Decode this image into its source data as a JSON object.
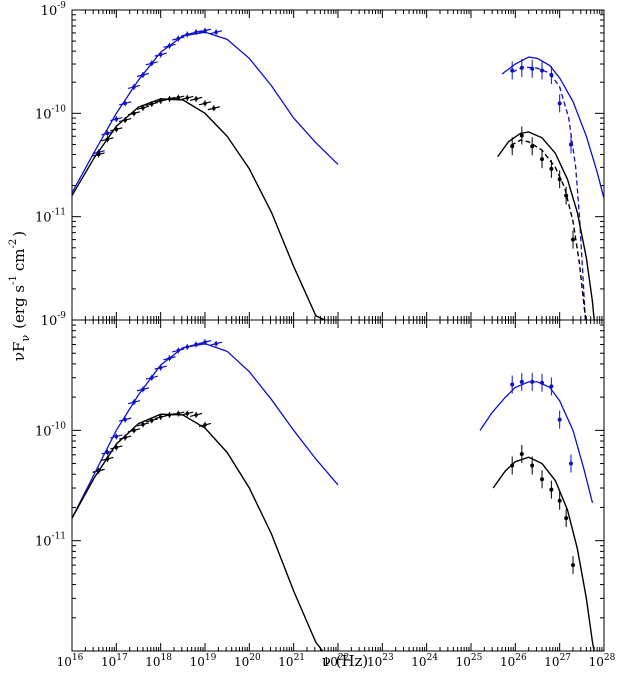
{
  "chart_data": [
    {
      "type": "scatter",
      "panel": "top",
      "xlabel": "",
      "ylabel": "",
      "xscale": "log",
      "yscale": "log",
      "xlim": [
        1e+16,
        1e+28
      ],
      "ylim": [
        1e-12,
        1e-09
      ],
      "x_tick_labels": [],
      "y_ticks": [
        {
          "base": "10",
          "exp": "-9"
        },
        {
          "base": "10",
          "exp": "-10"
        },
        {
          "base": "10",
          "exp": "-11"
        }
      ],
      "series": [
        {
          "color": "#1010cc",
          "kind": "points",
          "points": [
            [
              3.98e+16,
              4.2e-11
            ],
            [
              6.3e+16,
              6.4e-11
            ],
            [
              1e+17,
              8.8e-11
            ],
            [
              1.58e+17,
              1.25e-10
            ],
            [
              2.5e+17,
              1.8e-10
            ],
            [
              3.98e+17,
              2.35e-10
            ],
            [
              6.3e+17,
              3.05e-10
            ],
            [
              1e+18,
              3.7e-10
            ],
            [
              1.58e+18,
              4.5e-10
            ],
            [
              2.5e+18,
              5.3e-10
            ],
            [
              3.98e+18,
              5.8e-10
            ],
            [
              6.3e+18,
              6.1e-10
            ],
            [
              1e+19,
              6.3e-10
            ],
            [
              1.78e+19,
              6.1e-10
            ]
          ]
        },
        {
          "color": "#000000",
          "kind": "points",
          "points": [
            [
              3.98e+16,
              4e-11
            ],
            [
              6.3e+16,
              5.6e-11
            ],
            [
              1e+17,
              7e-11
            ],
            [
              1.58e+17,
              8.6e-11
            ],
            [
              2.5e+17,
              1e-10
            ],
            [
              3.98e+17,
              1.13e-10
            ],
            [
              6.3e+17,
              1.23e-10
            ],
            [
              1e+18,
              1.32e-10
            ],
            [
              1.58e+18,
              1.38e-10
            ],
            [
              2.5e+18,
              1.42e-10
            ],
            [
              3.98e+18,
              1.41e-10
            ],
            [
              6.3e+18,
              1.38e-10
            ],
            [
              1e+19,
              1.25e-10
            ],
            [
              1.58e+19,
              1.12e-10
            ]
          ]
        },
        {
          "color": "#1010cc",
          "kind": "points",
          "points": [
            [
              8.5e+25,
              2.6e-10
            ],
            [
              1.4e+26,
              2.75e-10
            ],
            [
              2.4e+26,
              2.7e-10
            ],
            [
              4e+26,
              2.6e-10
            ],
            [
              6.5e+26,
              2.35e-10
            ],
            [
              1e+27,
              1.25e-10
            ],
            [
              1.8e+27,
              5e-11
            ]
          ]
        },
        {
          "color": "#000000",
          "kind": "points",
          "points": [
            [
              8.5e+25,
              4.8e-11
            ],
            [
              1.4e+26,
              6.1e-11
            ],
            [
              2.4e+26,
              4.8e-11
            ],
            [
              4e+26,
              3.6e-11
            ],
            [
              6.5e+26,
              2.9e-11
            ],
            [
              1e+27,
              2.3e-11
            ],
            [
              1.4e+27,
              1.6e-11
            ],
            [
              2e+27,
              6e-12
            ]
          ]
        },
        {
          "color": "#1010cc",
          "kind": "curve",
          "dash": "solid",
          "points": [
            [
              1e+16,
              1.7e-11
            ],
            [
              3.16e+16,
              4.2e-11
            ],
            [
              1e+17,
              1e-10
            ],
            [
              3.16e+17,
              2.1e-10
            ],
            [
              1e+18,
              3.9e-10
            ],
            [
              3.16e+18,
              5.6e-10
            ],
            [
              1e+19,
              6.1e-10
            ],
            [
              3.16e+19,
              5.2e-10
            ],
            [
              1e+20,
              3.4e-10
            ],
            [
              3.16e+20,
              1.85e-10
            ],
            [
              1e+21,
              9e-11
            ],
            [
              3.16e+21,
              5.2e-11
            ],
            [
              1e+22,
              3.2e-11
            ]
          ]
        },
        {
          "color": "#000000",
          "kind": "curve",
          "dash": "solid",
          "points": [
            [
              1e+16,
              1.6e-11
            ],
            [
              3.16e+16,
              3.7e-11
            ],
            [
              1e+17,
              7.5e-11
            ],
            [
              3.16e+17,
              1.15e-10
            ],
            [
              1e+18,
              1.38e-10
            ],
            [
              3.16e+18,
              1.35e-10
            ],
            [
              1e+19,
              1e-10
            ],
            [
              3.16e+19,
              6e-11
            ],
            [
              1e+20,
              2.9e-11
            ],
            [
              3.16e+20,
              1.1e-11
            ],
            [
              1e+21,
              3.3e-12
            ],
            [
              3.16e+21,
              1.1e-12
            ],
            [
              5e+21,
              1e-12
            ]
          ]
        },
        {
          "color": "#1010cc",
          "kind": "curve",
          "dash": "solid",
          "points": [
            [
              5e+25,
              2.4e-10
            ],
            [
              1e+26,
              3e-10
            ],
            [
              2e+26,
              3.5e-10
            ],
            [
              3.16e+26,
              3.4e-10
            ],
            [
              6e+26,
              2.9e-10
            ],
            [
              1e+27,
              2.2e-10
            ],
            [
              2e+27,
              1.3e-10
            ],
            [
              4e+27,
              6e-11
            ],
            [
              7e+27,
              2.7e-11
            ],
            [
              1e+28,
              1.5e-11
            ]
          ]
        },
        {
          "color": "#1010cc",
          "kind": "curve",
          "dash": "dashed",
          "points": [
            [
              8.5e+25,
              2.5e-10
            ],
            [
              1.5e+26,
              2.8e-10
            ],
            [
              3e+26,
              2.75e-10
            ],
            [
              6e+26,
              2.45e-10
            ],
            [
              1e+27,
              1.8e-10
            ],
            [
              1.6e+27,
              9e-11
            ],
            [
              2.3e+27,
              3e-11
            ],
            [
              2.8e+27,
              1e-11
            ],
            [
              3.3e+27,
              3e-12
            ],
            [
              3.8e+27,
              1e-12
            ]
          ]
        },
        {
          "color": "#000000",
          "kind": "curve",
          "dash": "solid",
          "points": [
            [
              3.98e+25,
              3.8e-11
            ],
            [
              7e+25,
              5.3e-11
            ],
            [
              1.3e+26,
              6.4e-11
            ],
            [
              2e+26,
              6.6e-11
            ],
            [
              4e+26,
              5.8e-11
            ],
            [
              8e+26,
              4.1e-11
            ],
            [
              1.5e+27,
              2.3e-11
            ],
            [
              2.5e+27,
              1.1e-11
            ],
            [
              4e+27,
              4e-12
            ],
            [
              5.5e+27,
              1.5e-12
            ],
            [
              6e+27,
              1e-12
            ]
          ]
        },
        {
          "color": "#000000",
          "kind": "curve",
          "dash": "dashed",
          "points": [
            [
              8e+25,
              4.9e-11
            ],
            [
              1.3e+26,
              5.5e-11
            ],
            [
              2e+26,
              5.3e-11
            ],
            [
              4e+26,
              4.4e-11
            ],
            [
              8e+26,
              3e-11
            ],
            [
              1.3e+27,
              1.9e-11
            ],
            [
              2e+27,
              9e-12
            ],
            [
              2.8e+27,
              3.5e-12
            ],
            [
              3.6e+27,
              1.3e-12
            ],
            [
              3.9e+27,
              1e-12
            ]
          ]
        }
      ]
    },
    {
      "type": "scatter",
      "panel": "bottom",
      "xlabel": "ν (Hz)",
      "ylabel": "νF",
      "ylabel_sub": "ν",
      "ylabel_units": "(erg s",
      "ylabel_exp1": "-1",
      "ylabel_units2": "cm",
      "ylabel_exp2": "-2",
      "ylabel_close": ")",
      "xscale": "log",
      "yscale": "log",
      "xlim": [
        1e+16,
        1e+28
      ],
      "ylim": [
        1e-12,
        1e-09
      ],
      "x_tick_labels": [
        {
          "base": "10",
          "exp": "16"
        },
        {
          "base": "10",
          "exp": "17"
        },
        {
          "base": "10",
          "exp": "18"
        },
        {
          "base": "10",
          "exp": "19"
        },
        {
          "base": "10",
          "exp": "20"
        },
        {
          "base": "10",
          "exp": "21"
        },
        {
          "base": "10",
          "exp": "22"
        },
        {
          "base": "10",
          "exp": "23"
        },
        {
          "base": "10",
          "exp": "24"
        },
        {
          "base": "10",
          "exp": "25"
        },
        {
          "base": "10",
          "exp": "26"
        },
        {
          "base": "10",
          "exp": "27"
        },
        {
          "base": "10",
          "exp": "28"
        }
      ],
      "y_ticks": [
        {
          "base": "10",
          "exp": "-9"
        },
        {
          "base": "10",
          "exp": "-10"
        },
        {
          "base": "10",
          "exp": "-11"
        }
      ],
      "series": [
        {
          "color": "#1010cc",
          "kind": "points",
          "points": [
            [
              3.98e+16,
              4.3e-11
            ],
            [
              6.3e+16,
              6.3e-11
            ],
            [
              1e+17,
              8.8e-11
            ],
            [
              1.58e+17,
              1.25e-10
            ],
            [
              2.5e+17,
              1.8e-10
            ],
            [
              3.98e+17,
              2.35e-10
            ],
            [
              6.3e+17,
              3e-10
            ],
            [
              1e+18,
              3.7e-10
            ],
            [
              1.58e+18,
              4.5e-10
            ],
            [
              2.5e+18,
              5.3e-10
            ],
            [
              3.98e+18,
              5.7e-10
            ],
            [
              6.3e+18,
              6e-10
            ],
            [
              1e+19,
              6.3e-10
            ],
            [
              1.78e+19,
              6.1e-10
            ]
          ]
        },
        {
          "color": "#000000",
          "kind": "points",
          "points": [
            [
              3.98e+16,
              4.3e-11
            ],
            [
              6.3e+16,
              5.5e-11
            ],
            [
              1e+17,
              7e-11
            ],
            [
              1.58e+17,
              8.6e-11
            ],
            [
              2.5e+17,
              1e-10
            ],
            [
              3.98e+17,
              1.13e-10
            ],
            [
              6.3e+17,
              1.23e-10
            ],
            [
              1e+18,
              1.32e-10
            ],
            [
              1.58e+18,
              1.38e-10
            ],
            [
              2.5e+18,
              1.42e-10
            ],
            [
              3.98e+18,
              1.42e-10
            ],
            [
              6.3e+18,
              1.38e-10
            ],
            [
              1e+19,
              1.12e-10
            ]
          ]
        },
        {
          "color": "#1010cc",
          "kind": "points",
          "points": [
            [
              8.5e+25,
              2.6e-10
            ],
            [
              1.4e+26,
              2.75e-10
            ],
            [
              2.4e+26,
              2.75e-10
            ],
            [
              4e+26,
              2.7e-10
            ],
            [
              6.5e+26,
              2.5e-10
            ],
            [
              1e+27,
              1.25e-10
            ],
            [
              1.8e+27,
              5e-11
            ]
          ]
        },
        {
          "color": "#000000",
          "kind": "points",
          "points": [
            [
              8.5e+25,
              4.8e-11
            ],
            [
              1.4e+26,
              6.1e-11
            ],
            [
              2.4e+26,
              4.8e-11
            ],
            [
              4e+26,
              3.6e-11
            ],
            [
              6.5e+26,
              2.9e-11
            ],
            [
              1e+27,
              2.3e-11
            ],
            [
              1.4e+27,
              1.6e-11
            ],
            [
              2e+27,
              6e-12
            ]
          ]
        },
        {
          "color": "#1010cc",
          "kind": "curve",
          "dash": "solid",
          "points": [
            [
              1e+16,
              1.6e-11
            ],
            [
              3.16e+16,
              4e-11
            ],
            [
              1e+17,
              1e-10
            ],
            [
              3.16e+17,
              2.1e-10
            ],
            [
              1e+18,
              3.9e-10
            ],
            [
              3.16e+18,
              5.6e-10
            ],
            [
              1e+19,
              6.1e-10
            ],
            [
              3.16e+19,
              5.2e-10
            ],
            [
              1e+20,
              3.4e-10
            ],
            [
              3.16e+20,
              1.9e-10
            ],
            [
              1e+21,
              1e-10
            ],
            [
              3.16e+21,
              5.5e-11
            ],
            [
              1e+22,
              3.2e-11
            ]
          ]
        },
        {
          "color": "#000000",
          "kind": "curve",
          "dash": "solid",
          "points": [
            [
              1e+16,
              1.6e-11
            ],
            [
              3.16e+16,
              3.7e-11
            ],
            [
              1e+17,
              7.5e-11
            ],
            [
              3.16e+17,
              1.15e-10
            ],
            [
              1e+18,
              1.4e-10
            ],
            [
              3.16e+18,
              1.38e-10
            ],
            [
              1e+19,
              1.05e-10
            ],
            [
              3.16e+19,
              6.3e-11
            ],
            [
              1e+20,
              3e-11
            ],
            [
              3.16e+20,
              1.15e-11
            ],
            [
              1e+21,
              3.5e-12
            ],
            [
              3.16e+21,
              1.2e-12
            ],
            [
              4.5e+21,
              1e-12
            ]
          ]
        },
        {
          "color": "#1010cc",
          "kind": "curve",
          "dash": "solid",
          "points": [
            [
              1.6e+25,
              1e-10
            ],
            [
              3e+25,
              1.45e-10
            ],
            [
              6e+25,
              2e-10
            ],
            [
              1e+26,
              2.45e-10
            ],
            [
              2e+26,
              2.75e-10
            ],
            [
              3.16e+26,
              2.75e-10
            ],
            [
              6e+26,
              2.45e-10
            ],
            [
              1e+27,
              1.85e-10
            ],
            [
              2e+27,
              1e-10
            ],
            [
              3.5e+27,
              4.5e-11
            ],
            [
              5.5e+27,
              2.2e-11
            ]
          ]
        },
        {
          "color": "#000000",
          "kind": "curve",
          "dash": "solid",
          "points": [
            [
              3.16e+25,
              3e-11
            ],
            [
              6e+25,
              4.3e-11
            ],
            [
              1e+26,
              5.2e-11
            ],
            [
              2e+26,
              5.7e-11
            ],
            [
              4e+26,
              5e-11
            ],
            [
              8e+26,
              3.5e-11
            ],
            [
              1.5e+27,
              1.9e-11
            ],
            [
              2.5e+27,
              8.5e-12
            ],
            [
              4e+27,
              3e-12
            ],
            [
              5.5e+27,
              1.2e-12
            ],
            [
              6e+27,
              1e-12
            ]
          ]
        }
      ]
    }
  ]
}
